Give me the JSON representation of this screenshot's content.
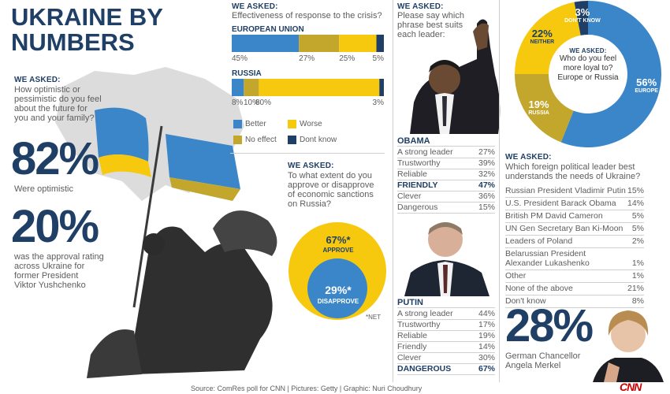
{
  "title": [
    "UKRAINE BY",
    "NUMBERS"
  ],
  "optimism": {
    "asked": "WE ASKED:",
    "question": [
      "How optimistic or",
      "pessimistic do you feel",
      "about the future for",
      "you and your family?"
    ],
    "stat": "82%",
    "stat_label": "Were optimistic",
    "stat2": "20%",
    "stat2_label": [
      "was the approval rating",
      "across Ukraine for",
      "former President",
      "Viktor Yushchenko"
    ]
  },
  "crisis": {
    "asked": "WE ASKED:",
    "question": "Effectiveness of response to the crisis?",
    "eu_label": "EUROPEAN UNION",
    "russia_label": "RUSSIA",
    "legend": [
      "Better",
      "Worse",
      "No effect",
      "Dont know"
    ]
  },
  "sanctions": {
    "asked": "WE ASKED:",
    "question": [
      "To what extent do you",
      "approve or disapprove",
      "of economic sanctions",
      "on Russia?"
    ],
    "approve_value": "67%*",
    "approve_label": "APPROVE",
    "disapprove_value": "29%*",
    "disapprove_label": "DISAPPROVE",
    "note": "*NET"
  },
  "leaders": {
    "asked": "WE ASKED:",
    "question": [
      "Please say which",
      "phrase best suits",
      "each leader:"
    ],
    "obama_title": "OBAMA",
    "obama": [
      {
        "label": "A strong leader",
        "value": "27%",
        "bold": false
      },
      {
        "label": "Trustworthy",
        "value": "39%",
        "bold": false
      },
      {
        "label": "Reliable",
        "value": "32%",
        "bold": false
      },
      {
        "label": "FRIENDLY",
        "value": "47%",
        "bold": true
      },
      {
        "label": "Clever",
        "value": "36%",
        "bold": false
      },
      {
        "label": "Dangerous",
        "value": "15%",
        "bold": false
      }
    ],
    "putin_title": "PUTIN",
    "putin": [
      {
        "label": "A strong leader",
        "value": "44%",
        "bold": false
      },
      {
        "label": "Trustworthy",
        "value": "17%",
        "bold": false
      },
      {
        "label": "Reliable",
        "value": "19%",
        "bold": false
      },
      {
        "label": "Friendly",
        "value": "14%",
        "bold": false
      },
      {
        "label": "Clever",
        "value": "30%",
        "bold": false
      },
      {
        "label": "DANGEROUS",
        "value": "67%",
        "bold": true
      }
    ]
  },
  "loyalty": {
    "asked": "WE ASKED:",
    "question": [
      "Who do you feel",
      "more loyal to?",
      "Europe or Russia"
    ],
    "slices": [
      {
        "value": "56%",
        "label": "EUROPE"
      },
      {
        "value": "19%",
        "label": "RUSSIA"
      },
      {
        "value": "22%",
        "label": "NEITHER"
      },
      {
        "value": "3%",
        "label": "DON'T KNOW"
      }
    ]
  },
  "foreign": {
    "asked": "WE ASKED:",
    "question": [
      "Which foreign political leader best",
      "understands the needs of Ukraine?"
    ],
    "rows": [
      {
        "label": "Russian President Vladimir Putin",
        "value": "15%"
      },
      {
        "label": "U.S. President Barack Obama",
        "value": "14%"
      },
      {
        "label": "British PM David Cameron",
        "value": "5%"
      },
      {
        "label": "UN Gen Secretary Ban Ki-Moon",
        "value": "5%"
      },
      {
        "label": "Leaders of Poland",
        "value": "2%"
      },
      {
        "label": "Belarussian President",
        "value": ""
      },
      {
        "label": "Alexander Lukashenko",
        "value": "1%"
      },
      {
        "label": "Other",
        "value": "1%"
      },
      {
        "label": "None of the above",
        "value": "21%"
      },
      {
        "label": "Don't know",
        "value": "8%"
      }
    ],
    "stat": "28%",
    "stat_label": [
      "German Chancellor",
      "Angela Merkel"
    ]
  },
  "footer": {
    "source": "Source: ComRes poll for CNN | Pictures: Getty | Graphic: Nuri Choudhury",
    "logo": "CNN"
  },
  "colors": {
    "blue": "#3a86c8",
    "yellow": "#f6c90e",
    "olive": "#c2a72c",
    "navy": "#1f3f66"
  },
  "chart_data": [
    {
      "type": "bar",
      "title": "Effectiveness of response to the crisis?",
      "categories": [
        "EUROPEAN UNION",
        "RUSSIA"
      ],
      "series": [
        {
          "name": "Better",
          "values": [
            45,
            8
          ]
        },
        {
          "name": "No effect",
          "values": [
            27,
            10
          ]
        },
        {
          "name": "Worse",
          "values": [
            25,
            80
          ]
        },
        {
          "name": "Dont know",
          "values": [
            5,
            3
          ]
        }
      ]
    },
    {
      "type": "pie",
      "title": "Who do you feel more loyal to? Europe or Russia",
      "labels": [
        "EUROPE",
        "RUSSIA",
        "NEITHER",
        "DON'T KNOW"
      ],
      "values": [
        56,
        19,
        22,
        3
      ]
    },
    {
      "type": "pie",
      "title": "To what extent do you approve or disapprove of economic sanctions on Russia?",
      "labels": [
        "APPROVE",
        "DISAPPROVE"
      ],
      "values": [
        67,
        29
      ]
    }
  ]
}
